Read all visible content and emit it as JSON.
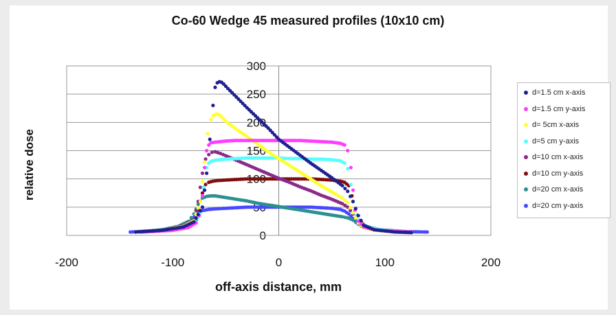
{
  "chart_data": {
    "type": "scatter",
    "title": "Co-60 Wedge 45 measured profiles (10x10 cm)",
    "xlabel": "off-axis distance, mm",
    "ylabel": "relative dose",
    "xlim": [
      -200,
      200
    ],
    "ylim": [
      0,
      300
    ],
    "xticks": [
      "-200",
      "-100",
      "0",
      "100",
      "200"
    ],
    "yticks": [
      "0",
      "50",
      "100",
      "150",
      "200",
      "250",
      "300"
    ],
    "grid": "horizontal",
    "legend_position": "right",
    "series": [
      {
        "name": "d=1.5 cm x-axis",
        "color": "#1f1f8f",
        "x": [
          -135,
          -110,
          -90,
          -80,
          -72,
          -68,
          -65,
          -62,
          -60,
          -58,
          -56,
          -54,
          -52,
          -48,
          -40,
          -30,
          -20,
          -10,
          0,
          10,
          20,
          30,
          40,
          50,
          60,
          65,
          70,
          75,
          80,
          90,
          100,
          110,
          125
        ],
        "y": [
          6,
          9,
          15,
          24,
          50,
          110,
          170,
          230,
          262,
          270,
          272,
          271,
          268,
          260,
          245,
          226,
          208,
          190,
          170,
          156,
          142,
          128,
          115,
          102,
          88,
          78,
          60,
          35,
          18,
          10,
          8,
          6,
          5
        ]
      },
      {
        "name": "d=1.5 cm y-axis",
        "color": "#ff3cff",
        "x": [
          -130,
          -100,
          -85,
          -78,
          -75,
          -72,
          -70,
          -68,
          -66,
          -64,
          -60,
          -50,
          -40,
          -30,
          -20,
          -10,
          0,
          10,
          20,
          30,
          40,
          50,
          58,
          62,
          65,
          68,
          70,
          72,
          75,
          80,
          90,
          100,
          125
        ],
        "y": [
          6,
          9,
          14,
          22,
          35,
          70,
          120,
          150,
          160,
          164,
          165,
          167,
          168,
          168,
          168,
          168,
          168,
          168,
          168,
          167,
          166,
          165,
          163,
          160,
          150,
          120,
          80,
          45,
          25,
          15,
          10,
          8,
          6
        ]
      },
      {
        "name": "d= 5cm x-axis",
        "color": "#ffff33",
        "x": [
          -135,
          -110,
          -90,
          -80,
          -74,
          -70,
          -67,
          -64,
          -62,
          -60,
          -58,
          -56,
          -54,
          -50,
          -40,
          -30,
          -20,
          -10,
          0,
          10,
          20,
          30,
          40,
          50,
          60,
          65,
          70,
          75,
          80,
          90,
          110,
          125
        ],
        "y": [
          6,
          9,
          16,
          26,
          60,
          130,
          180,
          205,
          212,
          214,
          215,
          213,
          210,
          202,
          188,
          175,
          162,
          148,
          136,
          124,
          112,
          100,
          88,
          77,
          66,
          58,
          40,
          22,
          14,
          9,
          7,
          5
        ]
      },
      {
        "name": "d=5 cm y-axis",
        "color": "#55ffff",
        "x": [
          -130,
          -100,
          -85,
          -78,
          -74,
          -71,
          -68,
          -66,
          -64,
          -60,
          -50,
          -40,
          -30,
          -20,
          -10,
          0,
          10,
          20,
          30,
          40,
          50,
          58,
          62,
          65,
          68,
          70,
          73,
          78,
          90,
          100,
          125
        ],
        "y": [
          6,
          9,
          15,
          24,
          40,
          85,
          120,
          128,
          131,
          133,
          135,
          136,
          137,
          137,
          137,
          137,
          136,
          136,
          135,
          135,
          134,
          132,
          128,
          118,
          90,
          60,
          35,
          20,
          12,
          9,
          6
        ]
      },
      {
        "name": "d=10 cm x-axis",
        "color": "#8a2a8a",
        "x": [
          -135,
          -110,
          -90,
          -80,
          -76,
          -72,
          -69,
          -66,
          -63,
          -60,
          -55,
          -50,
          -40,
          -30,
          -20,
          -10,
          0,
          10,
          20,
          30,
          40,
          50,
          60,
          65,
          70,
          75,
          80,
          90,
          110,
          125
        ],
        "y": [
          6,
          9,
          17,
          28,
          60,
          110,
          135,
          143,
          147,
          148,
          145,
          141,
          133,
          125,
          117,
          109,
          101,
          94,
          86,
          79,
          71,
          64,
          56,
          50,
          38,
          24,
          16,
          11,
          8,
          6
        ]
      },
      {
        "name": "d=10 cm y-axis",
        "color": "#7f0f0f",
        "x": [
          -130,
          -100,
          -85,
          -78,
          -75,
          -72,
          -69,
          -66,
          -62,
          -58,
          -50,
          -40,
          -30,
          -20,
          -10,
          0,
          10,
          20,
          30,
          40,
          50,
          58,
          62,
          66,
          69,
          72,
          76,
          82,
          95,
          110,
          125
        ],
        "y": [
          6,
          9,
          16,
          26,
          45,
          75,
          90,
          94,
          96,
          97,
          98,
          99,
          100,
          100,
          100,
          100,
          100,
          100,
          100,
          99,
          98,
          96,
          94,
          88,
          70,
          45,
          26,
          16,
          10,
          8,
          6
        ]
      },
      {
        "name": "d=20 cm x-axis",
        "color": "#2c9090",
        "x": [
          -135,
          -110,
          -95,
          -85,
          -80,
          -76,
          -72,
          -68,
          -64,
          -60,
          -50,
          -40,
          -30,
          -20,
          -10,
          0,
          10,
          20,
          30,
          40,
          50,
          60,
          65,
          70,
          75,
          80,
          90,
          110,
          125
        ],
        "y": [
          6,
          10,
          16,
          25,
          38,
          55,
          66,
          69,
          70,
          70,
          67,
          64,
          61,
          57,
          54,
          51,
          48,
          45,
          42,
          39,
          36,
          33,
          31,
          27,
          20,
          14,
          10,
          7,
          6
        ]
      },
      {
        "name": "d=20 cm y-axis",
        "color": "#4848ff",
        "x": [
          -140,
          -120,
          -100,
          -90,
          -84,
          -80,
          -76,
          -72,
          -66,
          -60,
          -50,
          -40,
          -30,
          -20,
          -10,
          0,
          10,
          20,
          30,
          40,
          50,
          58,
          62,
          66,
          70,
          74,
          80,
          90,
          110,
          140
        ],
        "y": [
          6,
          8,
          12,
          17,
          24,
          32,
          40,
          44,
          46,
          47,
          48,
          49,
          50,
          50,
          50,
          50,
          50,
          50,
          50,
          49,
          48,
          46,
          43,
          38,
          30,
          22,
          15,
          10,
          7,
          6
        ]
      }
    ]
  }
}
